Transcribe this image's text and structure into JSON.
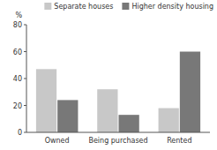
{
  "chart_data": {
    "type": "bar",
    "ylabel": "%",
    "categories": [
      "Owned",
      "Being purchased",
      "Rented"
    ],
    "series": [
      {
        "name": "Separate houses",
        "color": "#c8c8c8",
        "values": [
          47,
          32,
          18
        ]
      },
      {
        "name": "Higher density housing",
        "color": "#787878",
        "values": [
          24,
          13,
          60
        ]
      }
    ],
    "ylim": [
      0,
      80
    ],
    "yticks": [
      0,
      20,
      40,
      60,
      80
    ],
    "grid": false,
    "legend": "upper right"
  }
}
